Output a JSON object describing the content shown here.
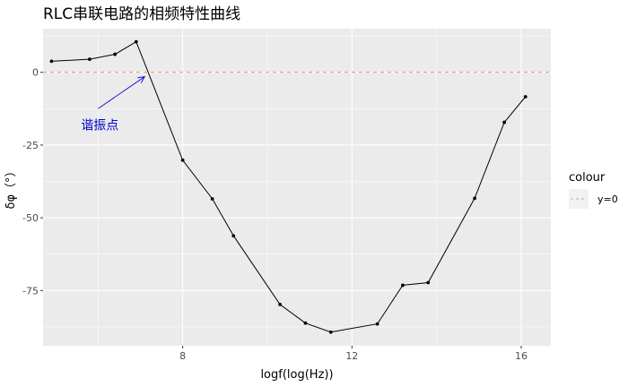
{
  "chart_data": {
    "type": "line",
    "title": "RLC串联电路的相频特性曲线",
    "xlabel": "logf(log(Hz))",
    "ylabel": "δφ（°）",
    "xlim": [
      4.7,
      16.7
    ],
    "ylim": [
      -94,
      15
    ],
    "x_ticks": [
      8,
      12,
      16
    ],
    "y_ticks": [
      0,
      -25,
      -50,
      -75
    ],
    "grid": true,
    "series": [
      {
        "x": [
          4.9,
          5.8,
          6.4,
          6.9,
          8.0,
          8.7,
          9.2,
          10.3,
          10.9,
          11.5,
          12.6,
          13.2,
          13.8,
          14.9,
          15.6,
          16.1
        ],
        "y": [
          3.8,
          4.5,
          6.2,
          10.5,
          -30.2,
          -43.5,
          -56.2,
          -79.8,
          -86.2,
          -89.3,
          -86.5,
          -73.2,
          -72.3,
          -43.3,
          -17.2,
          -8.4
        ]
      }
    ],
    "reference_line": {
      "y": 0,
      "color": "#f8766d",
      "style": "dashed"
    },
    "legend": {
      "title": "colour",
      "entries": [
        "y=0"
      ],
      "position": "right"
    },
    "annotation": {
      "text": "谐振点",
      "arrow_to": [
        7.1,
        -1.5
      ],
      "arrow_from": [
        6.0,
        -12.5
      ],
      "color": "#0000cc"
    },
    "colors": {
      "panel": "#ebebeb",
      "grid": "#ffffff",
      "line": "#000000"
    }
  }
}
